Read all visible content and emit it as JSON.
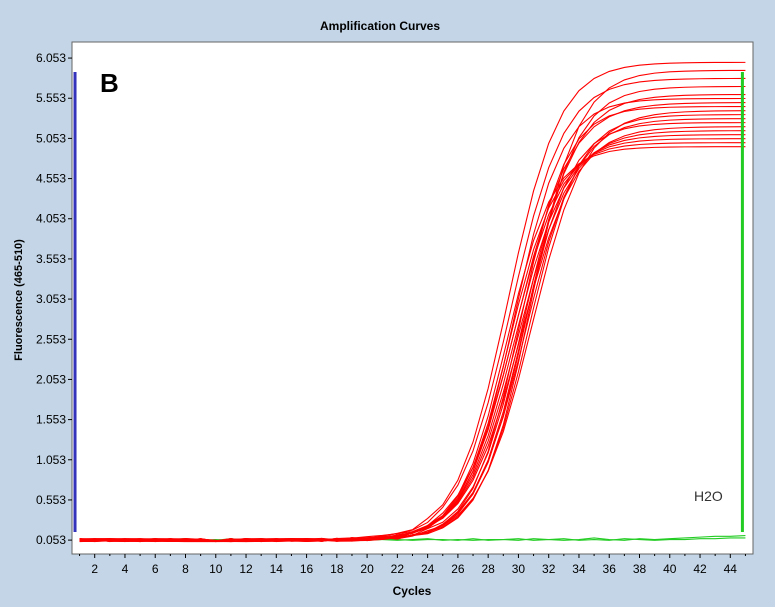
{
  "chart_data": {
    "type": "line",
    "title": "Amplification Curves",
    "panel_label": "B",
    "xlabel": "Cycles",
    "ylabel": "Fluorescence (465-510)",
    "xlim": [
      0.5,
      45.5
    ],
    "ylim": [
      -0.12,
      6.253
    ],
    "x_ticks": [
      "2",
      "4",
      "6",
      "8",
      "10",
      "12",
      "14",
      "16",
      "18",
      "20",
      "22",
      "24",
      "26",
      "28",
      "30",
      "32",
      "34",
      "36",
      "38",
      "40",
      "42",
      "44"
    ],
    "y_ticks": [
      "0.053",
      "0.553",
      "1.053",
      "1.553",
      "2.053",
      "2.553",
      "3.053",
      "3.553",
      "4.053",
      "4.553",
      "5.053",
      "5.553",
      "6.053"
    ],
    "grid": false,
    "annotation": "H2O",
    "colors": {
      "background": "#c3d5e6",
      "plot_area": "#ffffff",
      "sample_curves": "#ff0000",
      "h2o_curves": "#22cc22",
      "left_marker": "#3333bb",
      "right_marker": "#22cc22"
    },
    "markers": {
      "left_cycle": 0.7,
      "right_cycle": 44.8
    },
    "samples": {
      "description_plateaus": [
        4.95,
        5.0,
        5.05,
        5.1,
        5.15,
        5.2,
        5.25,
        5.3,
        5.35,
        5.4,
        5.45,
        5.5,
        5.55,
        5.6,
        5.7,
        5.8,
        5.9,
        6.0
      ],
      "midpoints": [
        29.2,
        29.4,
        29.6,
        29.8,
        30.0,
        30.2,
        30.3,
        30.5,
        30.7,
        30.9,
        30.1,
        29.9,
        29.7,
        30.4,
        30.6,
        29.5,
        30.8,
        29.3
      ],
      "slopes": [
        1.55,
        1.6,
        1.65,
        1.7,
        1.75,
        1.8,
        1.6,
        1.7,
        1.65,
        1.75,
        1.55,
        1.8,
        1.6,
        1.7,
        1.65,
        1.75,
        1.6,
        1.7
      ],
      "baseline": 0.053,
      "cycles": [
        1,
        2,
        3,
        4,
        5,
        6,
        7,
        8,
        9,
        10,
        11,
        12,
        13,
        14,
        15,
        16,
        17,
        18,
        19,
        20,
        21,
        22,
        23,
        24,
        25,
        26,
        27,
        28,
        29,
        30,
        31,
        32,
        33,
        34,
        35,
        36,
        37,
        38,
        39,
        40,
        41,
        42,
        43,
        44,
        45
      ]
    },
    "h2o_curves": {
      "cycles": [
        1,
        2,
        3,
        4,
        5,
        6,
        7,
        8,
        9,
        10,
        11,
        12,
        13,
        14,
        15,
        16,
        17,
        18,
        19,
        20,
        21,
        22,
        23,
        24,
        25,
        26,
        27,
        28,
        29,
        30,
        31,
        32,
        33,
        34,
        35,
        36,
        37,
        38,
        39,
        40,
        41,
        42,
        43,
        44,
        45
      ],
      "series": [
        {
          "values": [
            0.06,
            0.05,
            0.07,
            0.05,
            0.06,
            0.05,
            0.06,
            0.07,
            0.05,
            0.06,
            0.05,
            0.06,
            0.07,
            0.05,
            0.06,
            0.06,
            0.05,
            0.06,
            0.07,
            0.05,
            0.06,
            0.05,
            0.06,
            0.07,
            0.05,
            0.06,
            0.05,
            0.06,
            0.06,
            0.05,
            0.07,
            0.06,
            0.05,
            0.06,
            0.08,
            0.06,
            0.05,
            0.07,
            0.06,
            0.07,
            0.08,
            0.09,
            0.1,
            0.1,
            0.11
          ]
        },
        {
          "values": [
            0.05,
            0.06,
            0.05,
            0.06,
            0.05,
            0.07,
            0.05,
            0.06,
            0.06,
            0.05,
            0.07,
            0.05,
            0.06,
            0.05,
            0.06,
            0.05,
            0.07,
            0.05,
            0.06,
            0.05,
            0.07,
            0.06,
            0.05,
            0.06,
            0.06,
            0.05,
            0.07,
            0.05,
            0.06,
            0.07,
            0.05,
            0.06,
            0.07,
            0.05,
            0.06,
            0.05,
            0.07,
            0.06,
            0.05,
            0.06,
            0.06,
            0.07,
            0.07,
            0.08,
            0.08
          ]
        }
      ]
    }
  }
}
